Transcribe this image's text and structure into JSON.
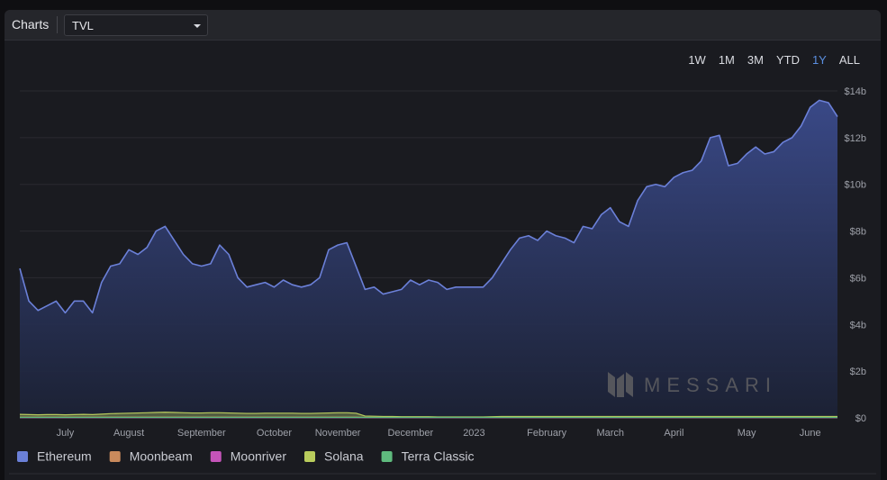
{
  "header": {
    "title": "Charts",
    "metric": "TVL"
  },
  "ranges": {
    "options": [
      "1W",
      "1M",
      "3M",
      "YTD",
      "1Y",
      "ALL"
    ],
    "active": 4
  },
  "chart_data": {
    "type": "area",
    "watermark": "MESSARI",
    "categories": [
      null,
      null,
      null,
      null,
      null,
      "July",
      null,
      null,
      null,
      null,
      null,
      null,
      "August",
      null,
      null,
      null,
      null,
      null,
      null,
      null,
      "September",
      null,
      null,
      null,
      null,
      null,
      null,
      null,
      "October",
      null,
      null,
      null,
      null,
      null,
      null,
      "November",
      null,
      null,
      null,
      null,
      null,
      null,
      null,
      "December",
      null,
      null,
      null,
      null,
      null,
      null,
      "2023",
      null,
      null,
      null,
      null,
      null,
      null,
      null,
      "February",
      null,
      null,
      null,
      null,
      null,
      null,
      "March",
      null,
      null,
      null,
      null,
      null,
      null,
      "April",
      null,
      null,
      null,
      null,
      null,
      null,
      null,
      "May",
      null,
      null,
      null,
      null,
      null,
      null,
      "June",
      null,
      null,
      null
    ],
    "series": [
      {
        "name": "Ethereum",
        "color": "#6b80d8",
        "values": [
          6.4,
          5.0,
          4.6,
          4.8,
          5.0,
          4.5,
          5.0,
          5.0,
          4.5,
          5.8,
          6.5,
          6.6,
          7.2,
          7.0,
          7.3,
          8.0,
          8.2,
          7.6,
          7.0,
          6.6,
          6.5,
          6.6,
          7.4,
          7.0,
          6.0,
          5.6,
          5.7,
          5.8,
          5.6,
          5.9,
          5.7,
          5.6,
          5.7,
          6.0,
          7.2,
          7.4,
          7.5,
          6.5,
          5.5,
          5.6,
          5.3,
          5.4,
          5.5,
          5.9,
          5.7,
          5.9,
          5.8,
          5.5,
          5.6,
          5.6,
          5.6,
          5.6,
          6.0,
          6.6,
          7.2,
          7.7,
          7.8,
          7.6,
          8.0,
          7.8,
          7.7,
          7.5,
          8.2,
          8.1,
          8.7,
          9.0,
          8.4,
          8.2,
          9.3,
          9.9,
          10.0,
          9.9,
          10.3,
          10.5,
          10.6,
          11.0,
          12.0,
          12.1,
          10.8,
          10.9,
          11.3,
          11.6,
          11.3,
          11.4,
          11.8,
          12.0,
          12.5,
          13.3,
          13.6,
          13.5,
          12.9
        ]
      },
      {
        "name": "Moonbeam",
        "color": "#c98a5c",
        "values": [
          0.03,
          0.03,
          0.03,
          0.03,
          0.03,
          0.03,
          0.03,
          0.03,
          0.03,
          0.03,
          0.03,
          0.03,
          0.03,
          0.03,
          0.03,
          0.03,
          0.03,
          0.03,
          0.03,
          0.03,
          0.03,
          0.03,
          0.03,
          0.03,
          0.03,
          0.03,
          0.03,
          0.03,
          0.03,
          0.03,
          0.03,
          0.03,
          0.03,
          0.03,
          0.03,
          0.03,
          0.03,
          0.03,
          0.02,
          0.02,
          0.02,
          0.02,
          0.02,
          0.02,
          0.02,
          0.02,
          0.02,
          0.02,
          0.02,
          0.02,
          0.02,
          0.02,
          0.02,
          0.02,
          0.02,
          0.02,
          0.02,
          0.02,
          0.02,
          0.02,
          0.02,
          0.02,
          0.02,
          0.02,
          0.02,
          0.02,
          0.02,
          0.02,
          0.02,
          0.02,
          0.02,
          0.02,
          0.02,
          0.02,
          0.02,
          0.02,
          0.02,
          0.02,
          0.02,
          0.02,
          0.02,
          0.02,
          0.02,
          0.02,
          0.02,
          0.02,
          0.02,
          0.02,
          0.02,
          0.02,
          0.02
        ]
      },
      {
        "name": "Moonriver",
        "color": "#c554b9",
        "values": [
          0.01,
          0.01,
          0.01,
          0.01,
          0.01,
          0.01,
          0.01,
          0.01,
          0.01,
          0.01,
          0.01,
          0.01,
          0.01,
          0.01,
          0.01,
          0.01,
          0.01,
          0.01,
          0.01,
          0.01,
          0.01,
          0.01,
          0.01,
          0.01,
          0.01,
          0.01,
          0.01,
          0.01,
          0.01,
          0.01,
          0.01,
          0.01,
          0.01,
          0.01,
          0.01,
          0.01,
          0.01,
          0.01,
          0.01,
          0.01,
          0.01,
          0.01,
          0.01,
          0.01,
          0.01,
          0.01,
          0.01,
          0.01,
          0.01,
          0.01,
          0.01,
          0.01,
          0.01,
          0.01,
          0.01,
          0.01,
          0.01,
          0.01,
          0.01,
          0.01,
          0.01,
          0.01,
          0.01,
          0.01,
          0.01,
          0.01,
          0.01,
          0.01,
          0.01,
          0.01,
          0.01,
          0.01,
          0.01,
          0.01,
          0.01,
          0.01,
          0.01,
          0.01,
          0.01,
          0.01,
          0.01,
          0.01,
          0.01,
          0.01,
          0.01,
          0.01,
          0.01,
          0.01,
          0.01,
          0.01,
          0.01
        ]
      },
      {
        "name": "Solana",
        "color": "#b9cc5c",
        "values": [
          0.15,
          0.14,
          0.13,
          0.14,
          0.14,
          0.13,
          0.14,
          0.15,
          0.14,
          0.16,
          0.18,
          0.19,
          0.2,
          0.21,
          0.22,
          0.23,
          0.24,
          0.23,
          0.22,
          0.21,
          0.21,
          0.22,
          0.22,
          0.21,
          0.2,
          0.19,
          0.19,
          0.2,
          0.2,
          0.2,
          0.2,
          0.19,
          0.19,
          0.2,
          0.21,
          0.22,
          0.22,
          0.2,
          0.08,
          0.07,
          0.06,
          0.06,
          0.05,
          0.05,
          0.05,
          0.05,
          0.04,
          0.04,
          0.04,
          0.04,
          0.04,
          0.04,
          0.05,
          0.06,
          0.06,
          0.06,
          0.06,
          0.06,
          0.06,
          0.06,
          0.06,
          0.06,
          0.06,
          0.06,
          0.06,
          0.06,
          0.06,
          0.06,
          0.06,
          0.06,
          0.06,
          0.06,
          0.06,
          0.06,
          0.06,
          0.06,
          0.06,
          0.06,
          0.06,
          0.06,
          0.06,
          0.06,
          0.06,
          0.06,
          0.06,
          0.06,
          0.06,
          0.06,
          0.06,
          0.06,
          0.06
        ]
      },
      {
        "name": "Terra Classic",
        "color": "#5fbb7e",
        "values": [
          0.02,
          0.02,
          0.02,
          0.02,
          0.02,
          0.02,
          0.02,
          0.02,
          0.02,
          0.02,
          0.02,
          0.02,
          0.02,
          0.02,
          0.02,
          0.02,
          0.02,
          0.02,
          0.02,
          0.02,
          0.02,
          0.02,
          0.02,
          0.02,
          0.02,
          0.02,
          0.02,
          0.02,
          0.02,
          0.02,
          0.02,
          0.02,
          0.02,
          0.02,
          0.02,
          0.02,
          0.02,
          0.02,
          0.02,
          0.02,
          0.02,
          0.02,
          0.02,
          0.02,
          0.02,
          0.02,
          0.02,
          0.02,
          0.02,
          0.02,
          0.02,
          0.02,
          0.02,
          0.02,
          0.02,
          0.02,
          0.02,
          0.02,
          0.02,
          0.02,
          0.02,
          0.02,
          0.02,
          0.02,
          0.02,
          0.02,
          0.02,
          0.02,
          0.02,
          0.02,
          0.02,
          0.02,
          0.02,
          0.02,
          0.02,
          0.02,
          0.02,
          0.02,
          0.02,
          0.02,
          0.02,
          0.02,
          0.02,
          0.02,
          0.02,
          0.02,
          0.02,
          0.02,
          0.02,
          0.02,
          0.02
        ]
      }
    ],
    "ylim": [
      0,
      14
    ],
    "yticks": [
      {
        "value": 0,
        "label": "$0"
      },
      {
        "value": 2,
        "label": "$2b"
      },
      {
        "value": 4,
        "label": "$4b"
      },
      {
        "value": 6,
        "label": "$6b"
      },
      {
        "value": 8,
        "label": "$8b"
      },
      {
        "value": 10,
        "label": "$10b"
      },
      {
        "value": 12,
        "label": "$12b"
      },
      {
        "value": 14,
        "label": "$14b"
      }
    ],
    "grid": true,
    "legend": "bottom-left"
  }
}
